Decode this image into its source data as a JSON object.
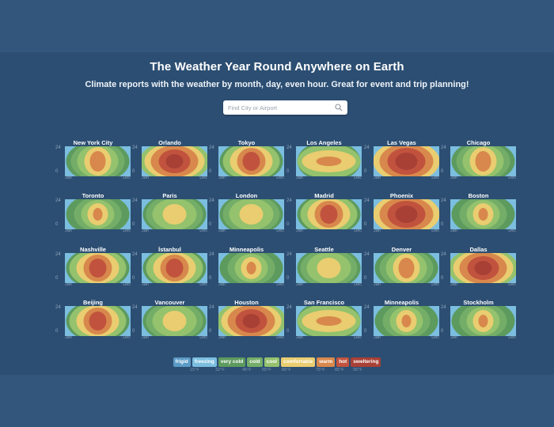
{
  "header": {
    "title": "The Weather Year Round Anywhere on Earth",
    "subtitle": "Climate reports with the weather by month, day, even hour. Great for event and trip planning!"
  },
  "search": {
    "placeholder": "Find City or Airport"
  },
  "axis": {
    "y_top": "24",
    "y_bottom": "0",
    "x_start": "Jan",
    "x_end": "Dec"
  },
  "cities": [
    {
      "name": "New York City",
      "heat": "temperate"
    },
    {
      "name": "Orlando",
      "heat": "hot"
    },
    {
      "name": "Tokyo",
      "heat": "warm"
    },
    {
      "name": "Los Angeles",
      "heat": "mild"
    },
    {
      "name": "Las Vegas",
      "heat": "desert"
    },
    {
      "name": "Chicago",
      "heat": "temperate"
    },
    {
      "name": "Toronto",
      "heat": "cold"
    },
    {
      "name": "Paris",
      "heat": "cool"
    },
    {
      "name": "London",
      "heat": "cool"
    },
    {
      "name": "Madrid",
      "heat": "warm"
    },
    {
      "name": "Phoenix",
      "heat": "desert"
    },
    {
      "name": "Boston",
      "heat": "cold"
    },
    {
      "name": "Nashville",
      "heat": "warm"
    },
    {
      "name": "İstanbul",
      "heat": "warm"
    },
    {
      "name": "Minneapolis",
      "heat": "cold"
    },
    {
      "name": "Seattle",
      "heat": "cool"
    },
    {
      "name": "Denver",
      "heat": "temperate"
    },
    {
      "name": "Dallas",
      "heat": "hot"
    },
    {
      "name": "Beijing",
      "heat": "warm"
    },
    {
      "name": "Vancouver",
      "heat": "cool"
    },
    {
      "name": "Houston",
      "heat": "hot"
    },
    {
      "name": "San Francisco",
      "heat": "mild"
    },
    {
      "name": "Minneapolis",
      "heat": "cold"
    },
    {
      "name": "Stockholm",
      "heat": "cold"
    }
  ],
  "legend": [
    {
      "label": "frigid",
      "color": "#5a9ac6"
    },
    {
      "label": "freezing",
      "color": "#7bbee0"
    },
    {
      "label": "very cold",
      "color": "#5d9a5e"
    },
    {
      "label": "cold",
      "color": "#73ad68"
    },
    {
      "label": "cool",
      "color": "#94c26d"
    },
    {
      "label": "comfortable",
      "color": "#e9cd70"
    },
    {
      "label": "warm",
      "color": "#d8884c"
    },
    {
      "label": "hot",
      "color": "#c1533e"
    },
    {
      "label": "sweltering",
      "color": "#a84036"
    }
  ],
  "temps": [
    "15°F",
    "32°F",
    "45°F",
    "55°F",
    "65°F",
    "75°F",
    "85°F",
    "95°F"
  ],
  "palette": {
    "freezing": "#7bbee0",
    "verycold": "#5d9a5e",
    "cold": "#73ad68",
    "cool": "#94c26d",
    "comfortable": "#e9cd70",
    "warm": "#d8884c",
    "hot": "#c1533e",
    "sweltering": "#a84036"
  }
}
